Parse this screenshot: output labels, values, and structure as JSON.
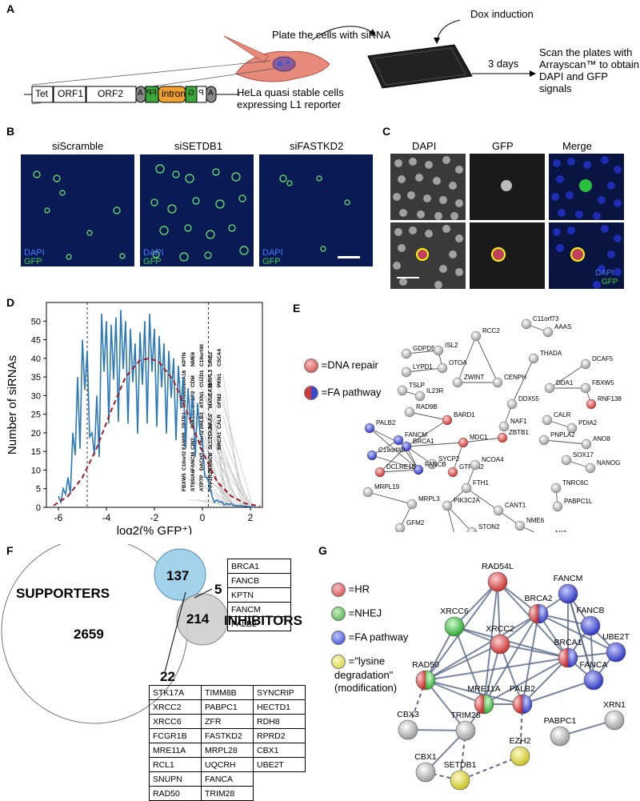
{
  "panels": {
    "A": {
      "label": "A",
      "dox": "Dox induction",
      "plate": "Plate the cells with siRNA",
      "days": "3 days",
      "scan": "Scan the plates with Arrayscan™ to obtain DAPI and GFP signals",
      "hela": "HeLa quasi stable cells expressing L1 reporter",
      "construct": [
        "Tet",
        "ORF1",
        "ORF2",
        "A",
        "FP",
        "intron",
        "G",
        "P",
        "A"
      ]
    },
    "B": {
      "label": "B",
      "conditions": [
        "siScramble",
        "siSETDB1",
        "siFASTKD2"
      ],
      "dapi": "DAPI",
      "gfp": "GFP"
    },
    "C": {
      "label": "C",
      "columns": [
        "DAPI",
        "GFP",
        "Merge"
      ],
      "dapi": "DAPI",
      "gfp": "GFP"
    },
    "D": {
      "label": "D"
    },
    "E": {
      "label": "E",
      "legend": [
        "=DNA repair",
        "=FA pathway"
      ],
      "nodes": [
        "GDPD5",
        "ISL2",
        "RCC2",
        "C11orf73",
        "AAAS",
        "OTOA",
        "LYPD1",
        "ZWINT",
        "CENPH",
        "THADA",
        "DCAF5",
        "IL23R",
        "TSLP",
        "DDX55",
        "DDA1",
        "FBXW5",
        "RAD9B",
        "NAF1",
        "RNF138",
        "PALB2",
        "BARD1",
        "FANCM",
        "BRCA1",
        "MDC1",
        "ZBTB1",
        "CALR",
        "PDIA2",
        "C19orf40",
        "SYCP2",
        "PNPLA2",
        "ANO8",
        "FANCB",
        "GTF2H2",
        "SOX17",
        "NANOG",
        "DCLRE1B",
        "NCOA4",
        "MRPL19",
        "FTH1",
        "TNRC6C",
        "MRPL3",
        "PIK3C2A",
        "CANT1",
        "PABPC1L",
        "GFM2",
        "STON2",
        "NME6",
        "MTMR2",
        "AK3"
      ]
    },
    "F": {
      "label": "F",
      "supporters": "SUPPORTERS",
      "inhibitors": "INHIBITORS",
      "n_supporters": "2659",
      "n_overlap_small": "137",
      "n_inhibitors": "214",
      "n_five": "5",
      "n_22": "22",
      "five_list": [
        "BRCA1",
        "FANCB",
        "KPTN",
        "FANCM",
        "PALB2"
      ],
      "list22": [
        [
          "STK17A",
          "TIMM8B",
          "SYNCRIP"
        ],
        [
          "XRCC2",
          "PABPC1",
          "HECTD1"
        ],
        [
          "XRCC6",
          "ZFR",
          "RDH8"
        ],
        [
          "FCGR1B",
          "FASTKD2",
          "RPRD2"
        ],
        [
          "MRE11A",
          "MRPL28",
          "CBX1"
        ],
        [
          "RCL1",
          "UQCRH",
          "UBE2T"
        ],
        [
          "SNUPN",
          "FANCA",
          ""
        ],
        [
          "RAD50",
          "TRIM28",
          ""
        ]
      ]
    },
    "G": {
      "label": "G",
      "legend": [
        "=HR",
        "=NHEJ",
        "=FA pathway",
        "=\"lysine",
        "degradation\"",
        "(modification)"
      ],
      "nodes": [
        "RAD54L",
        "FANCM",
        "BRCA2",
        "FANCB",
        "XRCC6",
        "UBE2T",
        "XRCC2",
        "BRCA1",
        "RAD50",
        "FANCA",
        "MRE11A",
        "PALB2",
        "XRN1",
        "PABPC1",
        "CBX3",
        "TRIM28",
        "EZH2",
        "CBX1",
        "SETDB1"
      ]
    }
  },
  "chart_data": {
    "type": "line",
    "xlabel": "log2(% GFP⁺)",
    "ylabel": "Number of siRNAs",
    "xlim": [
      -6.5,
      2.5
    ],
    "ylim": [
      0,
      55
    ],
    "xticks": [
      -6,
      -4,
      -2,
      0,
      2
    ],
    "xtick_labels": [
      "-6",
      "-4",
      "-2",
      "0",
      "2"
    ],
    "yticks": [
      0,
      5,
      10,
      15,
      20,
      25,
      30,
      35,
      40,
      45,
      50
    ],
    "thresholds": [
      -4.8,
      0.25
    ],
    "series": [
      {
        "style": "histogram",
        "color": "#2a78b8",
        "x": [
          -6.0,
          -5.8,
          -5.6,
          -5.4,
          -5.2,
          -5.0,
          -4.8,
          -4.6,
          -4.4,
          -4.2,
          -4.0,
          -3.8,
          -3.6,
          -3.4,
          -3.2,
          -3.0,
          -2.8,
          -2.6,
          -2.4,
          -2.2,
          -2.0,
          -1.8,
          -1.6,
          -1.4,
          -1.2,
          -1.0,
          -0.8,
          -0.6,
          -0.4,
          -0.2,
          0.0,
          0.2,
          0.4,
          0.6,
          0.8,
          1.0,
          1.2,
          1.4,
          1.6,
          1.8,
          2.0,
          2.2
        ],
        "y": [
          3,
          5,
          8,
          20,
          35,
          45,
          42,
          20,
          30,
          52,
          50,
          49,
          51,
          53,
          50,
          48,
          44,
          47,
          50,
          52,
          48,
          46,
          44,
          42,
          40,
          38,
          35,
          32,
          30,
          28,
          18,
          8,
          3,
          2,
          1.5,
          1,
          1,
          0.5,
          0.5,
          0.3,
          0.2,
          0.1
        ]
      },
      {
        "style": "fit",
        "color": "#a01c24",
        "x": [
          -6.2,
          -5.6,
          -5.0,
          -4.4,
          -3.8,
          -3.2,
          -2.6,
          -2.2,
          -1.8,
          -1.2,
          -0.6,
          0.0,
          0.6,
          1.2,
          1.8,
          2.4
        ],
        "y": [
          0.5,
          3,
          8,
          16,
          26,
          35,
          39.5,
          40,
          39,
          34,
          25,
          15,
          7,
          3,
          1,
          0.3
        ]
      }
    ],
    "labeled_genes": [
      "KPTN",
      "NAA16",
      "TNRC6C",
      "ZBTB1",
      "FAM8B",
      "C10orf2",
      "FBXW5",
      "NME6",
      "CDM",
      "SYCP2",
      "ZNF141",
      "CIN2",
      "FANCM",
      "ST8SIA6",
      "C19orf40",
      "CUZD1",
      "ATXN1",
      "PALB2",
      "C19orf2",
      "DACH2",
      "ATP7P",
      "ORB2",
      "MRPL3",
      "MAGEA11",
      "AAAS",
      "SLC25A26",
      "FANCB",
      "PPP2R2D",
      "CSCA4",
      "PKN1",
      "GFM2",
      "CALR",
      "BRCA1"
    ]
  }
}
